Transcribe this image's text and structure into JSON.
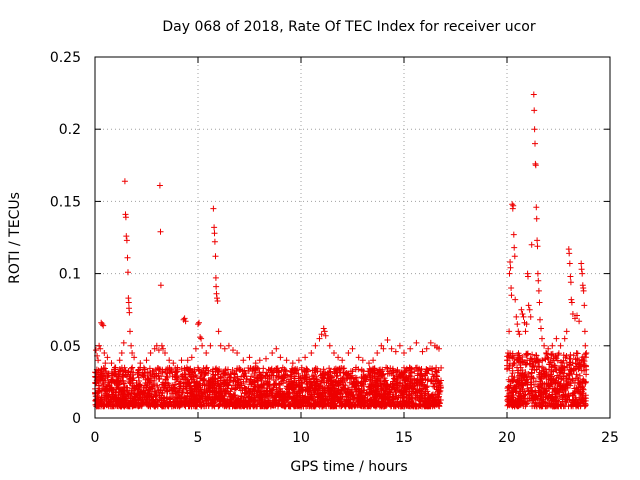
{
  "chart_data": {
    "type": "scatter",
    "title": "Day 068 of 2018, Rate Of TEC Index for receiver ucor",
    "xlabel": "GPS time / hours",
    "ylabel": "ROTI / TECUs",
    "xlim": [
      0,
      25
    ],
    "ylim": [
      0,
      0.25
    ],
    "xticks": [
      0,
      5,
      10,
      15,
      20,
      25
    ],
    "xtick_labels": [
      "0",
      "5",
      "10",
      "15",
      "20",
      "25"
    ],
    "yticks": [
      0,
      0.05,
      0.1,
      0.15,
      0.2,
      0.25
    ],
    "ytick_labels": [
      "0",
      "0.05",
      "0.1",
      "0.15",
      "0.2",
      "0.25"
    ],
    "grid": true,
    "marker": "+",
    "color": "#ee0000",
    "data_gaps_hours": [
      [
        16.8,
        20.0
      ]
    ],
    "baseline_band": [
      {
        "x_start": 0.0,
        "x_end": 16.8,
        "y_low": 0.008,
        "y_high": 0.035
      },
      {
        "x_start": 20.0,
        "x_end": 23.85,
        "y_low": 0.008,
        "y_high": 0.045
      }
    ],
    "series": [
      {
        "name": "ROTI",
        "points": [
          [
            0.05,
            0.047
          ],
          [
            0.1,
            0.043
          ],
          [
            0.15,
            0.04
          ],
          [
            0.2,
            0.05
          ],
          [
            0.25,
            0.048
          ],
          [
            0.3,
            0.066
          ],
          [
            0.35,
            0.065
          ],
          [
            0.4,
            0.064
          ],
          [
            0.45,
            0.045
          ],
          [
            0.5,
            0.038
          ],
          [
            0.6,
            0.042
          ],
          [
            0.8,
            0.038
          ],
          [
            1.0,
            0.035
          ],
          [
            1.2,
            0.04
          ],
          [
            1.3,
            0.045
          ],
          [
            1.4,
            0.052
          ],
          [
            1.45,
            0.164
          ],
          [
            1.48,
            0.141
          ],
          [
            1.5,
            0.139
          ],
          [
            1.52,
            0.126
          ],
          [
            1.55,
            0.123
          ],
          [
            1.58,
            0.111
          ],
          [
            1.6,
            0.101
          ],
          [
            1.62,
            0.083
          ],
          [
            1.64,
            0.08
          ],
          [
            1.65,
            0.076
          ],
          [
            1.67,
            0.073
          ],
          [
            1.7,
            0.06
          ],
          [
            1.75,
            0.05
          ],
          [
            1.8,
            0.045
          ],
          [
            1.9,
            0.042
          ],
          [
            2.2,
            0.038
          ],
          [
            2.5,
            0.04
          ],
          [
            2.7,
            0.045
          ],
          [
            2.9,
            0.048
          ],
          [
            3.0,
            0.05
          ],
          [
            3.1,
            0.047
          ],
          [
            3.15,
            0.161
          ],
          [
            3.18,
            0.129
          ],
          [
            3.2,
            0.092
          ],
          [
            3.25,
            0.05
          ],
          [
            3.3,
            0.048
          ],
          [
            3.4,
            0.045
          ],
          [
            3.6,
            0.04
          ],
          [
            3.8,
            0.038
          ],
          [
            4.0,
            0.035
          ],
          [
            4.2,
            0.04
          ],
          [
            4.3,
            0.068
          ],
          [
            4.35,
            0.069
          ],
          [
            4.4,
            0.067
          ],
          [
            4.5,
            0.04
          ],
          [
            4.7,
            0.042
          ],
          [
            4.9,
            0.048
          ],
          [
            5.0,
            0.065
          ],
          [
            5.05,
            0.066
          ],
          [
            5.1,
            0.056
          ],
          [
            5.15,
            0.055
          ],
          [
            5.2,
            0.05
          ],
          [
            5.4,
            0.045
          ],
          [
            5.6,
            0.05
          ],
          [
            5.75,
            0.145
          ],
          [
            5.78,
            0.132
          ],
          [
            5.8,
            0.128
          ],
          [
            5.82,
            0.122
          ],
          [
            5.85,
            0.112
          ],
          [
            5.87,
            0.097
          ],
          [
            5.88,
            0.091
          ],
          [
            5.9,
            0.086
          ],
          [
            5.92,
            0.083
          ],
          [
            5.95,
            0.081
          ],
          [
            6.0,
            0.06
          ],
          [
            6.1,
            0.05
          ],
          [
            6.3,
            0.048
          ],
          [
            6.5,
            0.05
          ],
          [
            6.7,
            0.047
          ],
          [
            6.9,
            0.045
          ],
          [
            7.2,
            0.04
          ],
          [
            7.5,
            0.042
          ],
          [
            7.8,
            0.038
          ],
          [
            8.0,
            0.04
          ],
          [
            8.3,
            0.041
          ],
          [
            8.6,
            0.045
          ],
          [
            8.8,
            0.048
          ],
          [
            9.0,
            0.042
          ],
          [
            9.3,
            0.04
          ],
          [
            9.6,
            0.038
          ],
          [
            9.9,
            0.04
          ],
          [
            10.2,
            0.042
          ],
          [
            10.5,
            0.045
          ],
          [
            10.7,
            0.05
          ],
          [
            10.9,
            0.055
          ],
          [
            11.0,
            0.058
          ],
          [
            11.1,
            0.062
          ],
          [
            11.15,
            0.06
          ],
          [
            11.2,
            0.057
          ],
          [
            11.4,
            0.05
          ],
          [
            11.6,
            0.045
          ],
          [
            11.8,
            0.042
          ],
          [
            12.0,
            0.04
          ],
          [
            12.3,
            0.045
          ],
          [
            12.5,
            0.048
          ],
          [
            12.8,
            0.042
          ],
          [
            13.0,
            0.04
          ],
          [
            13.3,
            0.038
          ],
          [
            13.5,
            0.04
          ],
          [
            13.7,
            0.045
          ],
          [
            13.9,
            0.05
          ],
          [
            14.0,
            0.048
          ],
          [
            14.2,
            0.054
          ],
          [
            14.4,
            0.048
          ],
          [
            14.6,
            0.046
          ],
          [
            14.8,
            0.05
          ],
          [
            15.0,
            0.045
          ],
          [
            15.3,
            0.048
          ],
          [
            15.6,
            0.052
          ],
          [
            15.9,
            0.046
          ],
          [
            16.1,
            0.048
          ],
          [
            16.3,
            0.052
          ],
          [
            16.5,
            0.05
          ],
          [
            16.6,
            0.049
          ],
          [
            16.7,
            0.048
          ],
          [
            20.0,
            0.04
          ],
          [
            20.05,
            0.045
          ],
          [
            20.1,
            0.06
          ],
          [
            20.12,
            0.1
          ],
          [
            20.15,
            0.108
          ],
          [
            20.17,
            0.104
          ],
          [
            20.2,
            0.09
          ],
          [
            20.22,
            0.085
          ],
          [
            20.25,
            0.148
          ],
          [
            20.28,
            0.145
          ],
          [
            20.3,
            0.147
          ],
          [
            20.33,
            0.127
          ],
          [
            20.35,
            0.118
          ],
          [
            20.38,
            0.112
          ],
          [
            20.4,
            0.082
          ],
          [
            20.45,
            0.07
          ],
          [
            20.5,
            0.065
          ],
          [
            20.55,
            0.06
          ],
          [
            20.6,
            0.058
          ],
          [
            20.7,
            0.075
          ],
          [
            20.75,
            0.072
          ],
          [
            20.8,
            0.07
          ],
          [
            20.85,
            0.066
          ],
          [
            20.9,
            0.06
          ],
          [
            20.95,
            0.065
          ],
          [
            21.0,
            0.1
          ],
          [
            21.02,
            0.098
          ],
          [
            21.05,
            0.078
          ],
          [
            21.1,
            0.075
          ],
          [
            21.15,
            0.07
          ],
          [
            21.2,
            0.12
          ],
          [
            21.3,
            0.224
          ],
          [
            21.32,
            0.213
          ],
          [
            21.34,
            0.2
          ],
          [
            21.36,
            0.19
          ],
          [
            21.38,
            0.176
          ],
          [
            21.4,
            0.175
          ],
          [
            21.42,
            0.146
          ],
          [
            21.44,
            0.138
          ],
          [
            21.46,
            0.123
          ],
          [
            21.48,
            0.119
          ],
          [
            21.5,
            0.1
          ],
          [
            21.52,
            0.095
          ],
          [
            21.55,
            0.088
          ],
          [
            21.58,
            0.08
          ],
          [
            21.6,
            0.068
          ],
          [
            21.65,
            0.062
          ],
          [
            21.7,
            0.055
          ],
          [
            21.8,
            0.05
          ],
          [
            21.9,
            0.045
          ],
          [
            22.0,
            0.048
          ],
          [
            22.2,
            0.05
          ],
          [
            22.4,
            0.055
          ],
          [
            22.6,
            0.05
          ],
          [
            22.8,
            0.055
          ],
          [
            22.9,
            0.06
          ],
          [
            23.0,
            0.117
          ],
          [
            23.02,
            0.114
          ],
          [
            23.05,
            0.107
          ],
          [
            23.08,
            0.098
          ],
          [
            23.1,
            0.094
          ],
          [
            23.12,
            0.082
          ],
          [
            23.15,
            0.08
          ],
          [
            23.2,
            0.072
          ],
          [
            23.3,
            0.069
          ],
          [
            23.4,
            0.071
          ],
          [
            23.5,
            0.067
          ],
          [
            23.6,
            0.107
          ],
          [
            23.62,
            0.103
          ],
          [
            23.65,
            0.1
          ],
          [
            23.68,
            0.092
          ],
          [
            23.7,
            0.09
          ],
          [
            23.72,
            0.088
          ],
          [
            23.75,
            0.078
          ],
          [
            23.78,
            0.06
          ],
          [
            23.8,
            0.05
          ],
          [
            23.85,
            0.045
          ]
        ]
      }
    ]
  }
}
